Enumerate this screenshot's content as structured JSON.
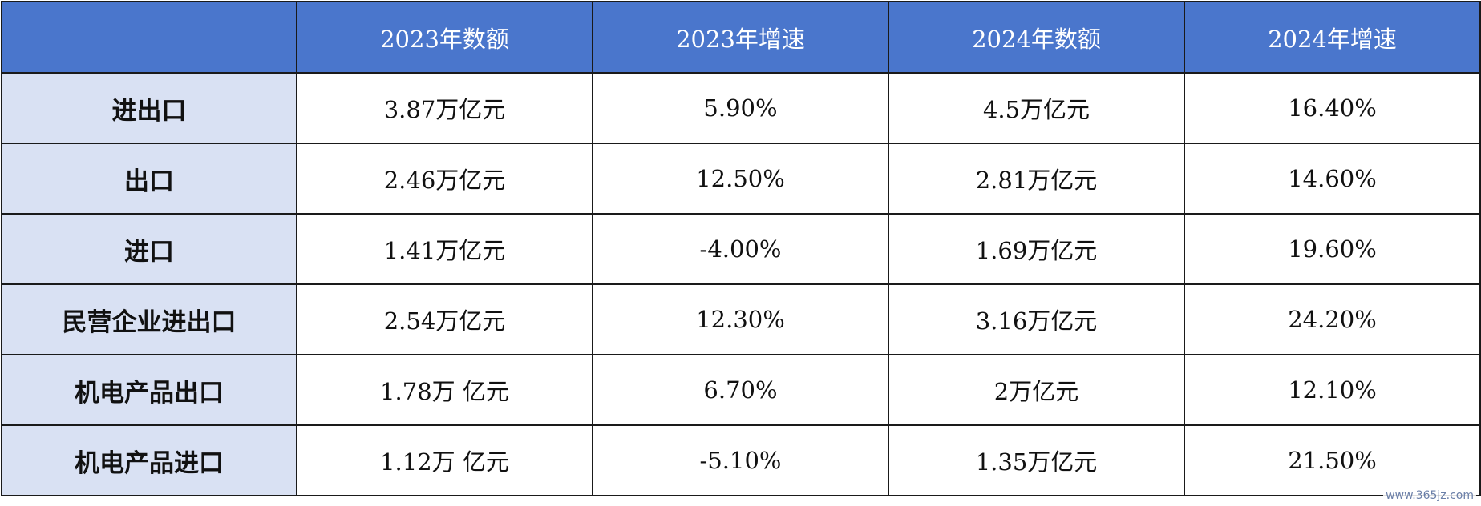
{
  "table": {
    "headers": [
      "",
      "2023年数额",
      "2023年增速",
      "2024年数额",
      "2024年增速"
    ],
    "rows": [
      {
        "label": "进出口",
        "cells": [
          "3.87万亿元",
          "5.90%",
          "4.5万亿元",
          "16.40%"
        ]
      },
      {
        "label": "出口",
        "cells": [
          "2.46万亿元",
          "12.50%",
          "2.81万亿元",
          "14.60%"
        ]
      },
      {
        "label": "进口",
        "cells": [
          "1.41万亿元",
          "-4.00%",
          "1.69万亿元",
          "19.60%"
        ]
      },
      {
        "label": "民营企业进出口",
        "cells": [
          "2.54万亿元",
          "12.30%",
          "3.16万亿元",
          "24.20%"
        ]
      },
      {
        "label": "机电产品出口",
        "cells": [
          "1.78万 亿元",
          "6.70%",
          "2万亿元",
          "12.10%"
        ]
      },
      {
        "label": "机电产品进口",
        "cells": [
          "1.12万 亿元",
          "-5.10%",
          "1.35万亿元",
          "21.50%"
        ]
      }
    ]
  },
  "watermark": "www.365jz.com",
  "colors": {
    "header_bg": "#4a76cc",
    "row_label_bg": "#d9e1f3",
    "border": "#1a1a1a"
  }
}
